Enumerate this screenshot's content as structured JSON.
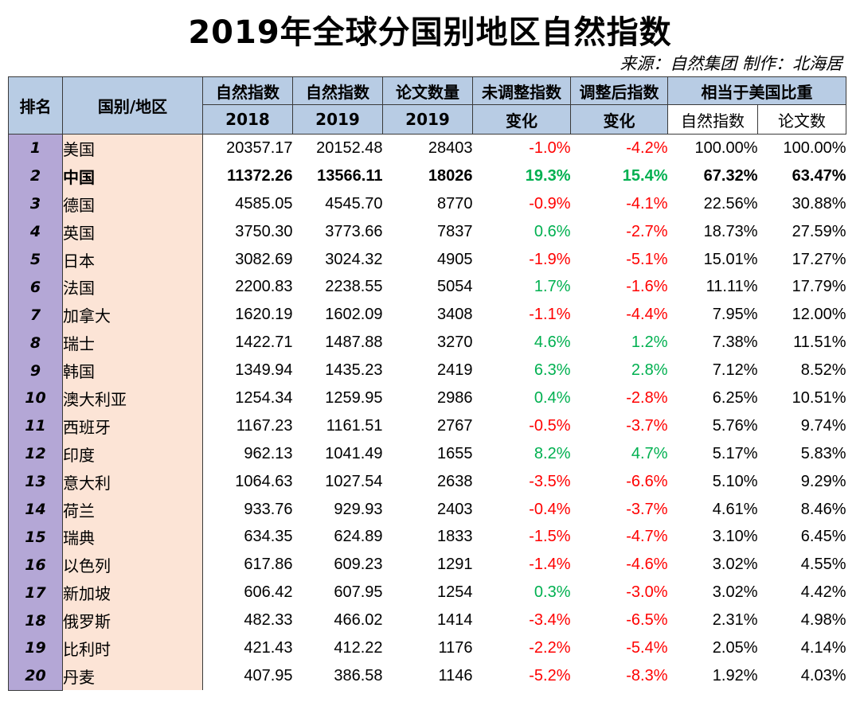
{
  "title": "2019年全球分国别地区自然指数",
  "source": "来源：自然集团 制作：北海居",
  "colors": {
    "header": "#b8cce4",
    "rank": "#b4a7d6",
    "name": "#fce4d6",
    "negative": "#ff0000",
    "positive": "#00b050"
  },
  "headers": {
    "rank": "排名",
    "country": "国别/地区",
    "ni2018": "自然指数",
    "ni2018_year": "2018",
    "ni2019": "自然指数",
    "ni2019_year": "2019",
    "papers": "论文数量",
    "papers_year": "2019",
    "unadj": "未调整指数",
    "unadj_sub": "变化",
    "adj": "调整后指数",
    "adj_sub": "变化",
    "rel": "相当于美国比重",
    "rel_ni": "自然指数",
    "rel_papers": "论文数"
  },
  "rows": [
    {
      "rank": "1",
      "country": "美国",
      "ni2018": "20357.17",
      "ni2019": "20152.48",
      "papers": "28403",
      "unadj": "-1.0%",
      "adj": "-4.2%",
      "rel_ni": "100.00%",
      "rel_papers": "100.00%",
      "unadj_sign": "neg",
      "adj_sign": "neg",
      "bold": false
    },
    {
      "rank": "2",
      "country": "中国",
      "ni2018": "11372.26",
      "ni2019": "13566.11",
      "papers": "18026",
      "unadj": "19.3%",
      "adj": "15.4%",
      "rel_ni": "67.32%",
      "rel_papers": "63.47%",
      "unadj_sign": "pos",
      "adj_sign": "pos",
      "bold": true
    },
    {
      "rank": "3",
      "country": "德国",
      "ni2018": "4585.05",
      "ni2019": "4545.70",
      "papers": "8770",
      "unadj": "-0.9%",
      "adj": "-4.1%",
      "rel_ni": "22.56%",
      "rel_papers": "30.88%",
      "unadj_sign": "neg",
      "adj_sign": "neg",
      "bold": false
    },
    {
      "rank": "4",
      "country": "英国",
      "ni2018": "3750.30",
      "ni2019": "3773.66",
      "papers": "7837",
      "unadj": "0.6%",
      "adj": "-2.7%",
      "rel_ni": "18.73%",
      "rel_papers": "27.59%",
      "unadj_sign": "pos",
      "adj_sign": "neg",
      "bold": false
    },
    {
      "rank": "5",
      "country": "日本",
      "ni2018": "3082.69",
      "ni2019": "3024.32",
      "papers": "4905",
      "unadj": "-1.9%",
      "adj": "-5.1%",
      "rel_ni": "15.01%",
      "rel_papers": "17.27%",
      "unadj_sign": "neg",
      "adj_sign": "neg",
      "bold": false
    },
    {
      "rank": "6",
      "country": "法国",
      "ni2018": "2200.83",
      "ni2019": "2238.55",
      "papers": "5054",
      "unadj": "1.7%",
      "adj": "-1.6%",
      "rel_ni": "11.11%",
      "rel_papers": "17.79%",
      "unadj_sign": "pos",
      "adj_sign": "neg",
      "bold": false
    },
    {
      "rank": "7",
      "country": "加拿大",
      "ni2018": "1620.19",
      "ni2019": "1602.09",
      "papers": "3408",
      "unadj": "-1.1%",
      "adj": "-4.4%",
      "rel_ni": "7.95%",
      "rel_papers": "12.00%",
      "unadj_sign": "neg",
      "adj_sign": "neg",
      "bold": false
    },
    {
      "rank": "8",
      "country": "瑞士",
      "ni2018": "1422.71",
      "ni2019": "1487.88",
      "papers": "3270",
      "unadj": "4.6%",
      "adj": "1.2%",
      "rel_ni": "7.38%",
      "rel_papers": "11.51%",
      "unadj_sign": "pos",
      "adj_sign": "pos",
      "bold": false
    },
    {
      "rank": "9",
      "country": "韩国",
      "ni2018": "1349.94",
      "ni2019": "1435.23",
      "papers": "2419",
      "unadj": "6.3%",
      "adj": "2.8%",
      "rel_ni": "7.12%",
      "rel_papers": "8.52%",
      "unadj_sign": "pos",
      "adj_sign": "pos",
      "bold": false
    },
    {
      "rank": "10",
      "country": "澳大利亚",
      "ni2018": "1254.34",
      "ni2019": "1259.95",
      "papers": "2986",
      "unadj": "0.4%",
      "adj": "-2.8%",
      "rel_ni": "6.25%",
      "rel_papers": "10.51%",
      "unadj_sign": "pos",
      "adj_sign": "neg",
      "bold": false
    },
    {
      "rank": "11",
      "country": "西班牙",
      "ni2018": "1167.23",
      "ni2019": "1161.51",
      "papers": "2767",
      "unadj": "-0.5%",
      "adj": "-3.7%",
      "rel_ni": "5.76%",
      "rel_papers": "9.74%",
      "unadj_sign": "neg",
      "adj_sign": "neg",
      "bold": false
    },
    {
      "rank": "12",
      "country": "印度",
      "ni2018": "962.13",
      "ni2019": "1041.49",
      "papers": "1655",
      "unadj": "8.2%",
      "adj": "4.7%",
      "rel_ni": "5.17%",
      "rel_papers": "5.83%",
      "unadj_sign": "pos",
      "adj_sign": "pos",
      "bold": false
    },
    {
      "rank": "13",
      "country": "意大利",
      "ni2018": "1064.63",
      "ni2019": "1027.54",
      "papers": "2638",
      "unadj": "-3.5%",
      "adj": "-6.6%",
      "rel_ni": "5.10%",
      "rel_papers": "9.29%",
      "unadj_sign": "neg",
      "adj_sign": "neg",
      "bold": false
    },
    {
      "rank": "14",
      "country": "荷兰",
      "ni2018": "933.76",
      "ni2019": "929.93",
      "papers": "2403",
      "unadj": "-0.4%",
      "adj": "-3.7%",
      "rel_ni": "4.61%",
      "rel_papers": "8.46%",
      "unadj_sign": "neg",
      "adj_sign": "neg",
      "bold": false
    },
    {
      "rank": "15",
      "country": "瑞典",
      "ni2018": "634.35",
      "ni2019": "624.89",
      "papers": "1833",
      "unadj": "-1.5%",
      "adj": "-4.7%",
      "rel_ni": "3.10%",
      "rel_papers": "6.45%",
      "unadj_sign": "neg",
      "adj_sign": "neg",
      "bold": false
    },
    {
      "rank": "16",
      "country": "以色列",
      "ni2018": "617.86",
      "ni2019": "609.23",
      "papers": "1291",
      "unadj": "-1.4%",
      "adj": "-4.6%",
      "rel_ni": "3.02%",
      "rel_papers": "4.55%",
      "unadj_sign": "neg",
      "adj_sign": "neg",
      "bold": false
    },
    {
      "rank": "17",
      "country": "新加坡",
      "ni2018": "606.42",
      "ni2019": "607.95",
      "papers": "1254",
      "unadj": "0.3%",
      "adj": "-3.0%",
      "rel_ni": "3.02%",
      "rel_papers": "4.42%",
      "unadj_sign": "pos",
      "adj_sign": "neg",
      "bold": false
    },
    {
      "rank": "18",
      "country": "俄罗斯",
      "ni2018": "482.33",
      "ni2019": "466.02",
      "papers": "1414",
      "unadj": "-3.4%",
      "adj": "-6.5%",
      "rel_ni": "2.31%",
      "rel_papers": "4.98%",
      "unadj_sign": "neg",
      "adj_sign": "neg",
      "bold": false
    },
    {
      "rank": "19",
      "country": "比利时",
      "ni2018": "421.43",
      "ni2019": "412.22",
      "papers": "1176",
      "unadj": "-2.2%",
      "adj": "-5.4%",
      "rel_ni": "2.05%",
      "rel_papers": "4.14%",
      "unadj_sign": "neg",
      "adj_sign": "neg",
      "bold": false
    },
    {
      "rank": "20",
      "country": "丹麦",
      "ni2018": "407.95",
      "ni2019": "386.58",
      "papers": "1146",
      "unadj": "-5.2%",
      "adj": "-8.3%",
      "rel_ni": "1.92%",
      "rel_papers": "4.03%",
      "unadj_sign": "neg",
      "adj_sign": "neg",
      "bold": false
    }
  ]
}
